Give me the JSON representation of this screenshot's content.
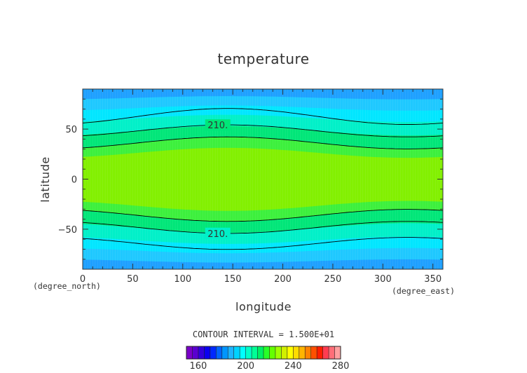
{
  "chart_data": {
    "type": "heatmap",
    "title": "temperature",
    "xlabel": "longitude",
    "ylabel": "latitude",
    "x_unit": "(degree_east)",
    "y_unit": "(degree_north)",
    "xlim": [
      0,
      360
    ],
    "ylim": [
      -90,
      90
    ],
    "x_ticks": [
      0,
      50,
      100,
      150,
      200,
      250,
      300,
      350
    ],
    "y_ticks": [
      -50,
      0,
      50
    ],
    "contour_interval_text": "CONTOUR INTERVAL = 1.500E+01",
    "contour_label_values": [
      "210.",
      "210."
    ],
    "colorbar_ticks": [
      160,
      200,
      240,
      280
    ],
    "colorbar_levels": [
      {
        "value": 150,
        "color": "#7a00c8"
      },
      {
        "value": 155,
        "color": "#5a00d0"
      },
      {
        "value": 160,
        "color": "#3200dc"
      },
      {
        "value": 165,
        "color": "#0a00f0"
      },
      {
        "value": 170,
        "color": "#0028ff"
      },
      {
        "value": 175,
        "color": "#0064ff"
      },
      {
        "value": 180,
        "color": "#0096ff"
      },
      {
        "value": 185,
        "color": "#1eb4ff"
      },
      {
        "value": 190,
        "color": "#00d2ff"
      },
      {
        "value": 195,
        "color": "#00ffff"
      },
      {
        "value": 200,
        "color": "#00ffc8"
      },
      {
        "value": 205,
        "color": "#00ff96"
      },
      {
        "value": 210,
        "color": "#00f064"
      },
      {
        "value": 215,
        "color": "#28ff28"
      },
      {
        "value": 220,
        "color": "#64ff00"
      },
      {
        "value": 225,
        "color": "#a0ff00"
      },
      {
        "value": 230,
        "color": "#d2f000"
      },
      {
        "value": 235,
        "color": "#ffff00"
      },
      {
        "value": 240,
        "color": "#ffdc00"
      },
      {
        "value": 245,
        "color": "#ffb400"
      },
      {
        "value": 250,
        "color": "#ff8200"
      },
      {
        "value": 255,
        "color": "#ff5000"
      },
      {
        "value": 260,
        "color": "#ff1e00"
      },
      {
        "value": 265,
        "color": "#ff3c50"
      },
      {
        "value": 270,
        "color": "#ff6e78"
      },
      {
        "value": 275,
        "color": "#ffa0a0"
      }
    ],
    "fill_bands": [
      {
        "range": [
          -90,
          -82
        ],
        "color": "#1ea0ff"
      },
      {
        "range": [
          -82,
          -72
        ],
        "color": "#1ec8ff"
      },
      {
        "range": [
          -72,
          -62
        ],
        "color": "#00e6ff"
      },
      {
        "range": [
          -62,
          -50
        ],
        "color": "#00f0c8"
      },
      {
        "range": [
          -50,
          -38
        ],
        "color": "#00e678"
      },
      {
        "range": [
          -38,
          -28
        ],
        "color": "#3cf03c"
      },
      {
        "range": [
          -28,
          28
        ],
        "color": "#82f000"
      },
      {
        "range": [
          28,
          38
        ],
        "color": "#3cf03c"
      },
      {
        "range": [
          38,
          50
        ],
        "color": "#00e678"
      },
      {
        "range": [
          50,
          62
        ],
        "color": "#00f0c8"
      },
      {
        "range": [
          62,
          72
        ],
        "color": "#00e6ff"
      },
      {
        "range": [
          72,
          82
        ],
        "color": "#1ec8ff"
      },
      {
        "range": [
          82,
          90
        ],
        "color": "#1ea0ff"
      }
    ],
    "contour_lines": [
      {
        "lat0": 65,
        "amp": 8,
        "phase_lon": 145,
        "labeled": false
      },
      {
        "lat0": 50,
        "amp": 6,
        "phase_lon": 145,
        "labeled": true
      },
      {
        "lat0": 38,
        "amp": 6,
        "phase_lon": 145,
        "labeled": false
      },
      {
        "lat0": -38,
        "amp": 6,
        "phase_lon": 145,
        "labeled": false
      },
      {
        "lat0": -50,
        "amp": 6,
        "phase_lon": 145,
        "labeled": true
      },
      {
        "lat0": -66,
        "amp": 6,
        "phase_lon": 145,
        "labeled": false
      }
    ]
  }
}
